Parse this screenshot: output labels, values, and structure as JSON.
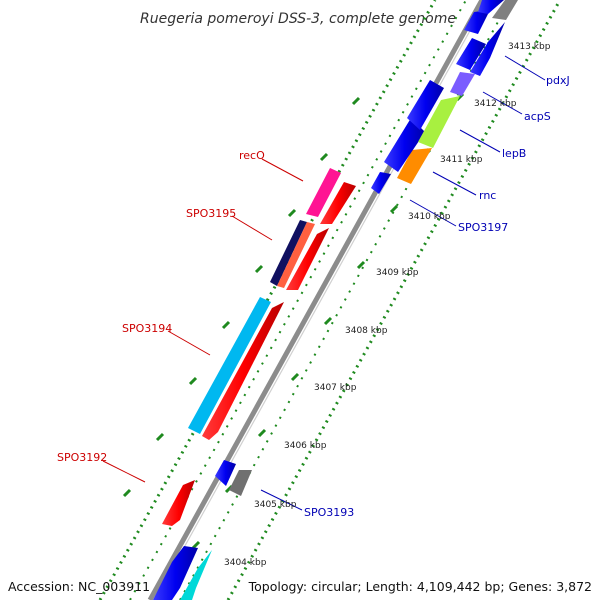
{
  "title": "Ruegeria pomeroyi DSS-3, complete genome",
  "accession": "Accession: NC_003911",
  "topology": "Topology: circular; Length: 4,109,442 bp; Genes: 3,872",
  "colors": {
    "backbone": "#8c8c8c",
    "ticks": "#1f8a1f",
    "label_forward": "#cc0000",
    "label_reverse": "#0000b4"
  },
  "scale_labels": [
    {
      "text": "3404 kbp",
      "kb": 3404
    },
    {
      "text": "3405 kbp",
      "kb": 3405
    },
    {
      "text": "3406 kbp",
      "kb": 3406
    },
    {
      "text": "3407 kbp",
      "kb": 3407
    },
    {
      "text": "3408 kbp",
      "kb": 3408
    },
    {
      "text": "3409 kbp",
      "kb": 3409
    },
    {
      "text": "3410 kbp",
      "kb": 3410
    },
    {
      "text": "3411 kbp",
      "kb": 3411
    },
    {
      "text": "3412 kbp",
      "kb": 3412
    },
    {
      "text": "3413 kbp",
      "kb": 3413
    }
  ],
  "gene_labels": [
    {
      "text": "recO",
      "strand": "forward"
    },
    {
      "text": "SPO3195",
      "strand": "forward"
    },
    {
      "text": "SPO3194",
      "strand": "forward"
    },
    {
      "text": "SPO3192",
      "strand": "forward"
    },
    {
      "text": "pdxJ",
      "strand": "reverse"
    },
    {
      "text": "acpS",
      "strand": "reverse"
    },
    {
      "text": "lepB",
      "strand": "reverse"
    },
    {
      "text": "rnc",
      "strand": "reverse"
    },
    {
      "text": "SPO3197",
      "strand": "reverse"
    },
    {
      "text": "SPO3193",
      "strand": "reverse"
    }
  ]
}
